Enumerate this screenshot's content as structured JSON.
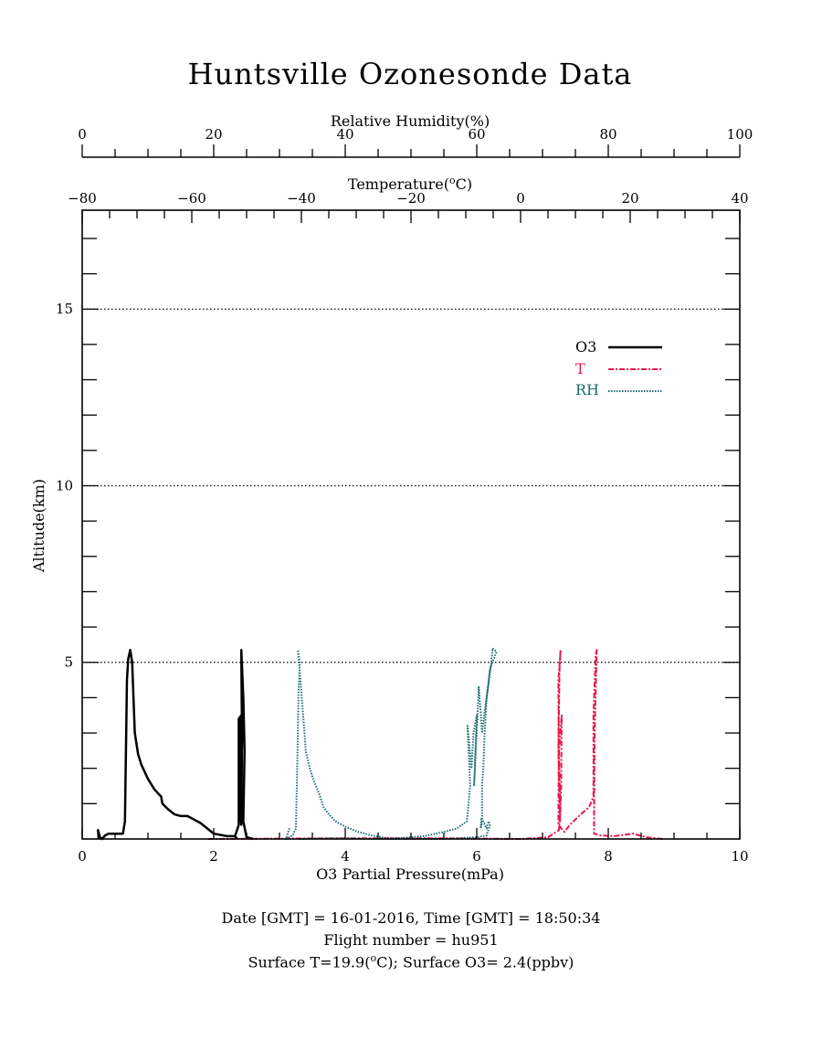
{
  "chart_data": {
    "type": "line",
    "title": "Huntsville Ozonesonde Data",
    "axes": {
      "o3": {
        "label": "O3 Partial Pressure(mPa)",
        "range": [
          0,
          10
        ],
        "ticks": [
          "0",
          "2",
          "4",
          "6",
          "8",
          "10"
        ],
        "position": "bottom"
      },
      "alt": {
        "label": "Altitude(km)",
        "range": [
          0,
          17.8
        ],
        "ticks": [
          "5",
          "10",
          "15"
        ],
        "position": "left"
      },
      "temp": {
        "label_main": "Temperature(",
        "label_sup": "o",
        "label_end": "C)",
        "range": [
          -80,
          40
        ],
        "ticks": [
          "−80",
          "−60",
          "−40",
          "−20",
          "0",
          "20",
          "40"
        ],
        "position": "top-inner"
      },
      "rh": {
        "label": "Relative Humidity(%)",
        "range": [
          0,
          100
        ],
        "ticks": [
          "0",
          "20",
          "40",
          "60",
          "80",
          "100"
        ],
        "position": "top-outer"
      }
    },
    "gridlines_alt": [
      5,
      10,
      15
    ],
    "legend": {
      "placement": "top-right",
      "entries": [
        {
          "name": "O3",
          "color": "#000000",
          "style": "solid"
        },
        {
          "name": "T",
          "color": "#e8174e",
          "style": "dash-dot"
        },
        {
          "name": "RH",
          "color": "#1a6b70",
          "style": "dotted"
        }
      ]
    },
    "series": [
      {
        "name": "O3",
        "axis": "o3",
        "color": "#000000",
        "style": "solid",
        "points": [
          [
            0.25,
            0.0
          ],
          [
            0.24,
            0.25
          ],
          [
            0.27,
            0.05
          ],
          [
            0.3,
            0.0
          ],
          [
            0.35,
            0.1
          ],
          [
            0.4,
            0.15
          ],
          [
            0.5,
            0.15
          ],
          [
            0.62,
            0.15
          ],
          [
            0.65,
            0.5
          ],
          [
            0.68,
            4.5
          ],
          [
            0.7,
            5.1
          ],
          [
            0.73,
            5.35
          ],
          [
            0.76,
            5.0
          ],
          [
            0.8,
            3.0
          ],
          [
            0.85,
            2.4
          ],
          [
            0.9,
            2.1
          ],
          [
            1.0,
            1.7
          ],
          [
            1.1,
            1.4
          ],
          [
            1.2,
            1.2
          ],
          [
            1.22,
            1.0
          ],
          [
            1.3,
            0.85
          ],
          [
            1.4,
            0.7
          ],
          [
            1.5,
            0.65
          ],
          [
            1.6,
            0.65
          ],
          [
            1.7,
            0.55
          ],
          [
            1.8,
            0.45
          ],
          [
            1.9,
            0.3
          ],
          [
            2.0,
            0.15
          ],
          [
            2.2,
            0.08
          ],
          [
            2.32,
            0.08
          ],
          [
            2.36,
            0.0
          ]
        ]
      },
      {
        "name": "O3",
        "axis": "o3",
        "color": "#000000",
        "style": "solid",
        "points": [
          [
            2.32,
            0.05
          ],
          [
            2.38,
            0.4
          ],
          [
            2.38,
            3.4
          ],
          [
            2.42,
            3.5
          ],
          [
            2.4,
            3.0
          ],
          [
            2.4,
            1.0
          ],
          [
            2.42,
            0.4
          ],
          [
            2.43,
            2.8
          ],
          [
            2.42,
            5.35
          ],
          [
            2.45,
            4.0
          ],
          [
            2.47,
            2.5
          ],
          [
            2.45,
            0.5
          ],
          [
            2.5,
            0.05
          ],
          [
            2.6,
            0.0
          ]
        ]
      },
      {
        "name": "T",
        "axis": "temp",
        "color": "#e8174e",
        "style": "dash-dot",
        "points": [
          [
            -57,
            0.0
          ],
          [
            -30,
            0.02
          ],
          [
            -15,
            0.02
          ],
          [
            0,
            0.0
          ],
          [
            5,
            0.05
          ],
          [
            7,
            0.25
          ],
          [
            7.2,
            1.0
          ],
          [
            7,
            2.5
          ],
          [
            7.5,
            3.5
          ],
          [
            7.4,
            1.5
          ],
          [
            7.2,
            0.5
          ],
          [
            6.9,
            2.5
          ],
          [
            7.1,
            4.8
          ],
          [
            7.3,
            5.35
          ],
          [
            6.9,
            4.5
          ],
          [
            6.95,
            2.0
          ],
          [
            6.9,
            0.4
          ],
          [
            8.0,
            0.2
          ],
          [
            9.0,
            0.4
          ],
          [
            11.0,
            0.7
          ],
          [
            12.5,
            0.9
          ],
          [
            13.3,
            1.2
          ],
          [
            13.3,
            3.5
          ],
          [
            13.7,
            5.2
          ],
          [
            13.9,
            5.35
          ],
          [
            13.5,
            3.0
          ],
          [
            13.4,
            0.6
          ],
          [
            13.4,
            0.15
          ],
          [
            14.5,
            0.1
          ],
          [
            17.0,
            0.08
          ],
          [
            20.5,
            0.15
          ],
          [
            23.0,
            0.05
          ],
          [
            26,
            0.0
          ]
        ]
      },
      {
        "name": "RH",
        "axis": "rh",
        "color": "#1a6b70",
        "style": "dotted",
        "points": [
          [
            31.5,
            0.3
          ],
          [
            31,
            0.0
          ],
          [
            32,
            0.1
          ],
          [
            32.5,
            0.3
          ],
          [
            32.7,
            2.0
          ],
          [
            32.9,
            4.2
          ],
          [
            33.1,
            5.0
          ],
          [
            32.8,
            5.35
          ],
          [
            33.2,
            4.5
          ],
          [
            33.6,
            3.5
          ],
          [
            34,
            2.5
          ],
          [
            34.6,
            2.0
          ],
          [
            35.3,
            1.6
          ],
          [
            36,
            1.3
          ],
          [
            36.7,
            0.9
          ],
          [
            37.5,
            0.7
          ],
          [
            38.5,
            0.5
          ],
          [
            40,
            0.35
          ],
          [
            42,
            0.2
          ],
          [
            44,
            0.1
          ],
          [
            46,
            0.03
          ],
          [
            48,
            0.02
          ],
          [
            52,
            0.08
          ],
          [
            55,
            0.2
          ],
          [
            57,
            0.3
          ],
          [
            58.5,
            0.5
          ],
          [
            59,
            1.5
          ],
          [
            58.6,
            3.2
          ],
          [
            59.2,
            2.0
          ],
          [
            59.5,
            3.0
          ],
          [
            60,
            3.5
          ],
          [
            59.6,
            1.5
          ],
          [
            60.3,
            4.3
          ],
          [
            60.8,
            3.0
          ],
          [
            61.2,
            3.6
          ],
          [
            61.8,
            4.4
          ],
          [
            62.2,
            5.0
          ],
          [
            62.4,
            5.4
          ],
          [
            63,
            5.3
          ],
          [
            62,
            4.8
          ],
          [
            61.5,
            4.0
          ],
          [
            61.2,
            3.0
          ],
          [
            61,
            2.0
          ],
          [
            60.8,
            1.5
          ],
          [
            60.8,
            0.5
          ],
          [
            60.6,
            0.3
          ],
          [
            60.7,
            0.6
          ],
          [
            61.5,
            0.3
          ],
          [
            61.8,
            0.5
          ],
          [
            62,
            0.4
          ],
          [
            61.5,
            0.1
          ],
          [
            60,
            0.05
          ],
          [
            55,
            0.0
          ],
          [
            45,
            0.0
          ],
          [
            38,
            0.02
          ],
          [
            33,
            0.0
          ]
        ]
      }
    ]
  },
  "footer": {
    "line1": "Date [GMT] = 16-01-2016,  Time [GMT] = 18:50:34",
    "line2": "Flight number = hu951",
    "line3_a": "Surface T=19.9(",
    "line3_sup": "o",
    "line3_b": "C); Surface O3= 2.4(ppbv)"
  }
}
